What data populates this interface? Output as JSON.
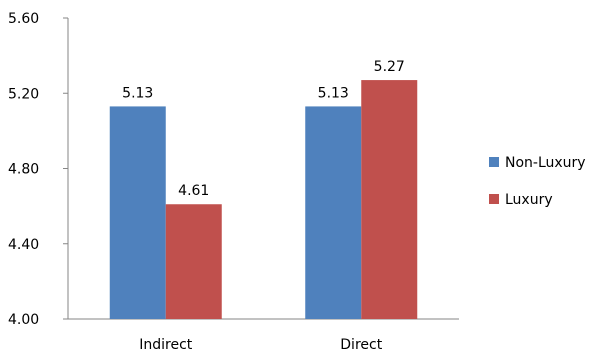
{
  "chart_data": {
    "type": "bar",
    "title": "",
    "xlabel": "",
    "ylabel": "",
    "categories": [
      "Indirect",
      "Direct"
    ],
    "series": [
      {
        "name": "Non-Luxury",
        "values": [
          5.13,
          5.13
        ],
        "labels": [
          "5.13",
          "5.13"
        ],
        "color": "#4F81BD"
      },
      {
        "name": "Luxury",
        "values": [
          4.61,
          5.27
        ],
        "labels": [
          "4.61",
          "5.27"
        ],
        "color": "#C0504D"
      }
    ],
    "ylim": [
      4.0,
      5.6
    ],
    "yticks": [
      4.0,
      4.4,
      4.8,
      5.2,
      5.6
    ],
    "ytick_labels": [
      "4.00",
      "4.40",
      "4.80",
      "5.20",
      "5.60"
    ],
    "grid": false,
    "legend_position": "right"
  }
}
